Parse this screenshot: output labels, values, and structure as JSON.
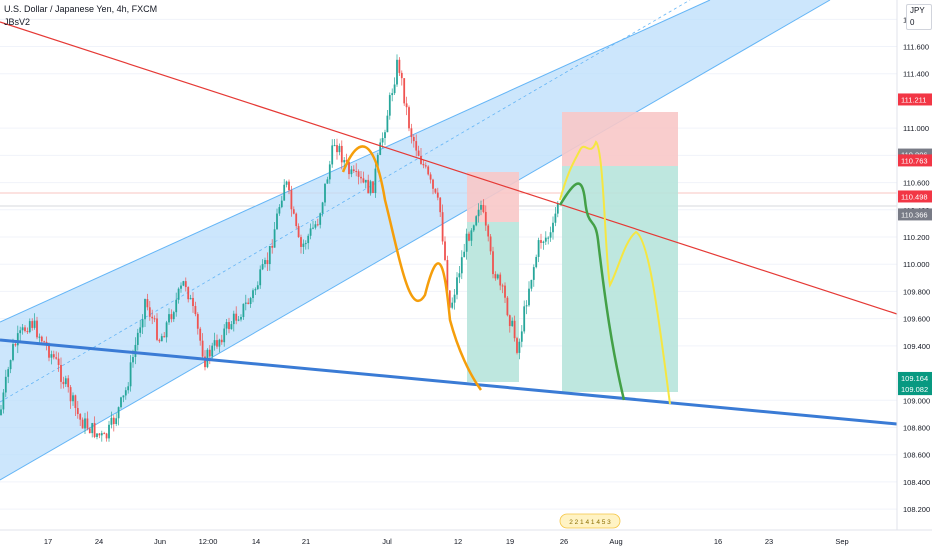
{
  "header": {
    "symbol_title": "U.S. Dollar / Japanese Yen, 4h, FXCM",
    "indicator": "JBsV2",
    "currency_unit": "JPY 0"
  },
  "chart_data": {
    "type": "candlestick",
    "price_axis": {
      "range": [
        108.12,
        111.92
      ],
      "ticks": [
        111.8,
        111.6,
        111.4,
        111.0,
        110.8,
        110.6,
        110.4,
        110.2,
        110.0,
        109.8,
        109.6,
        109.4,
        109.0,
        108.8,
        108.6,
        108.4,
        108.2
      ],
      "tick_labels": [
        "111.800",
        "111.600",
        "111.400",
        "111.000",
        "110.800",
        "110.600",
        "110.400",
        "110.200",
        "110.000",
        "109.800",
        "109.600",
        "109.400",
        "109.000",
        "108.800",
        "108.600",
        "108.400",
        "108.200"
      ]
    },
    "time_axis": {
      "labels": [
        "17",
        "24",
        "Jun",
        "12:00",
        "14",
        "21",
        "Jul",
        "12",
        "19",
        "26",
        "Aug",
        "16",
        "23",
        "Sep"
      ]
    },
    "price_badges": [
      {
        "value": "111.211",
        "price": 111.211,
        "color": "#f23645"
      },
      {
        "value": "110.806",
        "price": 110.806,
        "color": "#787b86"
      },
      {
        "value": "110.763",
        "price": 110.763,
        "color": "#f23645"
      },
      {
        "value": "110.498",
        "price": 110.498,
        "color": "#f23645"
      },
      {
        "value": "110.366",
        "price": 110.366,
        "color": "#787b86"
      },
      {
        "value": "109.164",
        "price": 109.164,
        "color": "#089981"
      },
      {
        "value": "109.082",
        "price": 109.082,
        "color": "#089981"
      }
    ],
    "time_marker_text": "2 2 1 4 1 4 5 3",
    "colors": {
      "up_candle": "#26a69a",
      "down_candle": "#ef5350",
      "channel_fill": "#bbdefb",
      "channel_line": "#64b5f6",
      "downtrend_line": "#e53935",
      "support_line": "#3a7bd5",
      "projection_orange": "#f59e0b",
      "projection_green": "#43a047",
      "projection_yellow": "#f5e642",
      "stop_zone": "#f8c8c8",
      "target_zone": "#b7e4dc"
    }
  }
}
